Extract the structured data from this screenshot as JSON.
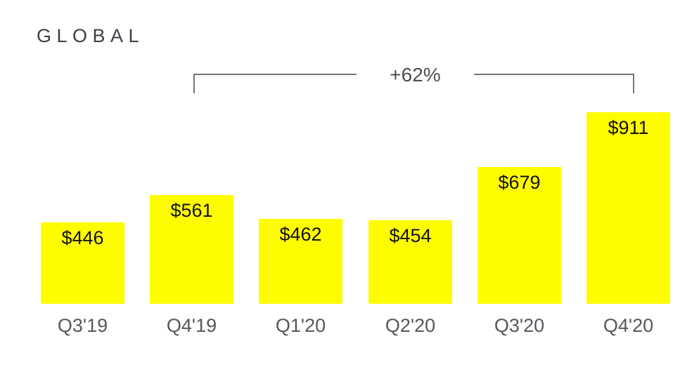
{
  "page": {
    "title": "GLOBAL",
    "annotation": "+62%"
  },
  "chart_data": {
    "type": "bar",
    "title": "GLOBAL",
    "categories": [
      "Q3'19",
      "Q4'19",
      "Q1'20",
      "Q2'20",
      "Q3'20",
      "Q4'20"
    ],
    "values": [
      446,
      561,
      462,
      454,
      679,
      911
    ],
    "value_labels": [
      "$446",
      "$561",
      "$462",
      "$454",
      "$679",
      "$911"
    ],
    "series_unit": "USD millions (as printed: $ values)",
    "annotation": "+62%",
    "annotation_span": [
      "Q4'19",
      "Q4'20"
    ],
    "xlabel": "",
    "ylabel": "",
    "grid": false,
    "axes_shown": false,
    "legend_position": "none",
    "bar_color": "#FFFC00",
    "value_label_color": "#131313",
    "axis_label_color": "#55585d",
    "title_color": "#3b4046",
    "bracket_color": "#74777b",
    "background_color": "#ffffff"
  }
}
